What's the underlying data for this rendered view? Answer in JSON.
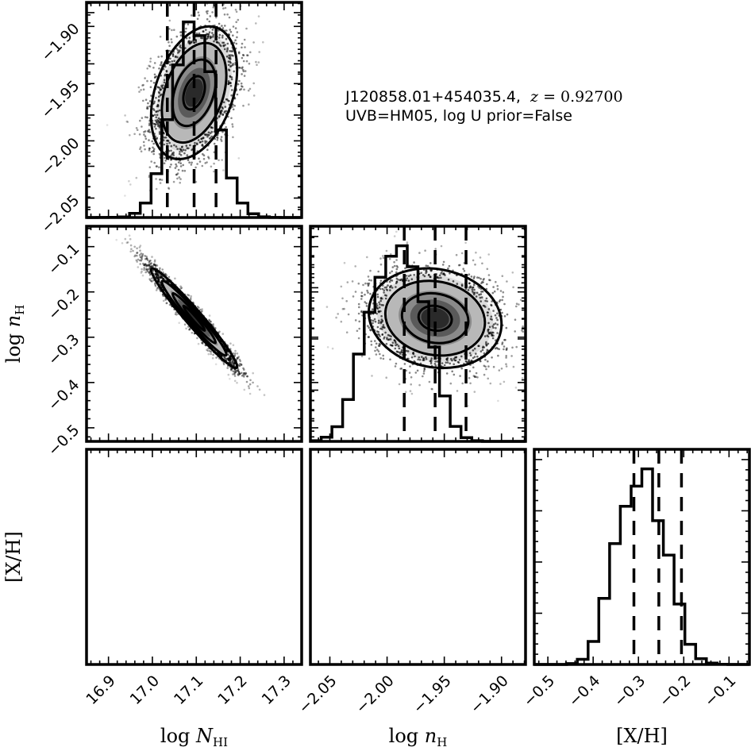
{
  "annotation": {
    "line1_object": "J120858.01+454035.4,",
    "line1_z_var": "z",
    "line1_z_value": " = 0.92700",
    "line2": "UVB=HM05, log U prior=False"
  },
  "colors": {
    "ink": "#000000",
    "background": "#ffffff"
  },
  "chart_data": {
    "type": "corner",
    "parameters": [
      {
        "key": "NHI",
        "label_main": "log ",
        "label_var": "N",
        "label_sub": "HI",
        "range": [
          16.85,
          17.34
        ],
        "ticks": [
          16.9,
          17.0,
          17.1,
          17.2,
          17.3
        ],
        "tick_labels": [
          "16.9",
          "17.0",
          "17.1",
          "17.2",
          "17.3"
        ]
      },
      {
        "key": "nH",
        "label_main": "log ",
        "label_var": "n",
        "label_sub": "H",
        "range": [
          -2.067,
          -1.879
        ],
        "ticks": [
          -2.05,
          -2.0,
          -1.95,
          -1.9
        ],
        "tick_labels": [
          "−2.05",
          "−2.00",
          "−1.95",
          "−1.90"
        ]
      },
      {
        "key": "XH",
        "label_main": "[X/H]",
        "label_var": "",
        "label_sub": "",
        "range": [
          -0.53,
          -0.055
        ],
        "ticks": [
          -0.5,
          -0.4,
          -0.3,
          -0.2,
          -0.1
        ],
        "tick_labels": [
          "−0.5",
          "−0.4",
          "−0.3",
          "−0.2",
          "−0.1"
        ]
      }
    ],
    "histograms": [
      {
        "parameter": "NHI",
        "bin_edges": [
          16.85,
          16.8745,
          16.899,
          16.9235,
          16.948,
          16.9725,
          16.997,
          17.0215,
          17.046,
          17.0705,
          17.095,
          17.1195,
          17.144,
          17.1685,
          17.193,
          17.2175,
          17.242,
          17.2665,
          17.291,
          17.3155,
          17.34
        ],
        "counts": [
          0,
          2,
          5,
          18,
          120,
          420,
          1280,
          2850,
          4450,
          5700,
          5300,
          4250,
          2550,
          1150,
          420,
          110,
          20,
          3,
          1,
          0
        ],
        "quantiles": [
          17.034,
          17.095,
          17.145
        ]
      },
      {
        "parameter": "nH",
        "bin_edges": [
          -2.067,
          -2.0576,
          -2.0482,
          -2.0388,
          -2.0294,
          -2.02,
          -2.0106,
          -2.0012,
          -1.9918,
          -1.9824,
          -1.973,
          -1.9636,
          -1.9542,
          -1.9448,
          -1.9354,
          -1.926,
          -1.9166,
          -1.9072,
          -1.8978,
          -1.8884,
          -1.879
        ],
        "counts": [
          20,
          120,
          420,
          1200,
          2500,
          3700,
          4700,
          5300,
          5600,
          5000,
          4000,
          2700,
          1300,
          430,
          110,
          20,
          0,
          0,
          0,
          0
        ],
        "quantiles": [
          -1.985,
          -1.958,
          -1.931
        ]
      },
      {
        "parameter": "XH",
        "bin_edges": [
          -0.53,
          -0.50625,
          -0.4825,
          -0.45875,
          -0.435,
          -0.41125,
          -0.3875,
          -0.36375,
          -0.34,
          -0.31625,
          -0.2925,
          -0.26875,
          -0.245,
          -0.22125,
          -0.1975,
          -0.17375,
          -0.15,
          -0.12625,
          -0.1025,
          -0.07875,
          -0.055
        ],
        "counts": [
          0,
          0,
          0,
          30,
          180,
          800,
          2300,
          4200,
          5500,
          6200,
          6800,
          5000,
          3800,
          2100,
          700,
          200,
          50,
          5,
          0,
          0
        ],
        "quantiles": [
          -0.31,
          -0.255,
          -0.205
        ]
      }
    ],
    "pair_plots": [
      {
        "x": "NHI",
        "y": "nH",
        "center": [
          17.095,
          -1.958
        ],
        "sigma": [
          0.049,
          0.029
        ],
        "rho": 0.35,
        "density_levels": [
          0.5,
          1.0,
          1.5,
          2.0
        ]
      },
      {
        "x": "NHI",
        "y": "XH",
        "center": [
          17.095,
          -0.258
        ],
        "sigma": [
          0.049,
          0.055
        ],
        "rho": -0.97,
        "density_levels": [
          0.5,
          1.0,
          1.5,
          2.0
        ]
      },
      {
        "x": "nH",
        "y": "XH",
        "center": [
          -1.958,
          -0.258
        ],
        "sigma": [
          0.029,
          0.055
        ],
        "rho": -0.12,
        "density_levels": [
          0.5,
          1.0,
          1.5,
          2.0
        ]
      }
    ],
    "xlabel_columns": [
      "NHI",
      "nH",
      "XH"
    ],
    "ylabel_rows": [
      "nH",
      "XH"
    ],
    "grid": false,
    "legend": "none"
  }
}
